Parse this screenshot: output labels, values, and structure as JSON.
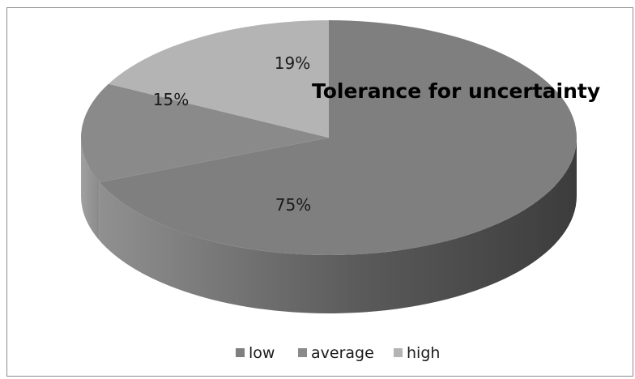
{
  "chart_data": {
    "type": "pie",
    "style": "3d",
    "title": "Tolerance for uncertainty",
    "legend_position": "bottom",
    "slices": [
      {
        "name": "low",
        "value": 75,
        "label": "75%",
        "color": "#7f7f7f"
      },
      {
        "name": "average",
        "value": 15,
        "label": "15%",
        "color": "#8a8a8a"
      },
      {
        "name": "high",
        "value": 19,
        "label": "19%",
        "color": "#b4b4b4"
      }
    ]
  }
}
